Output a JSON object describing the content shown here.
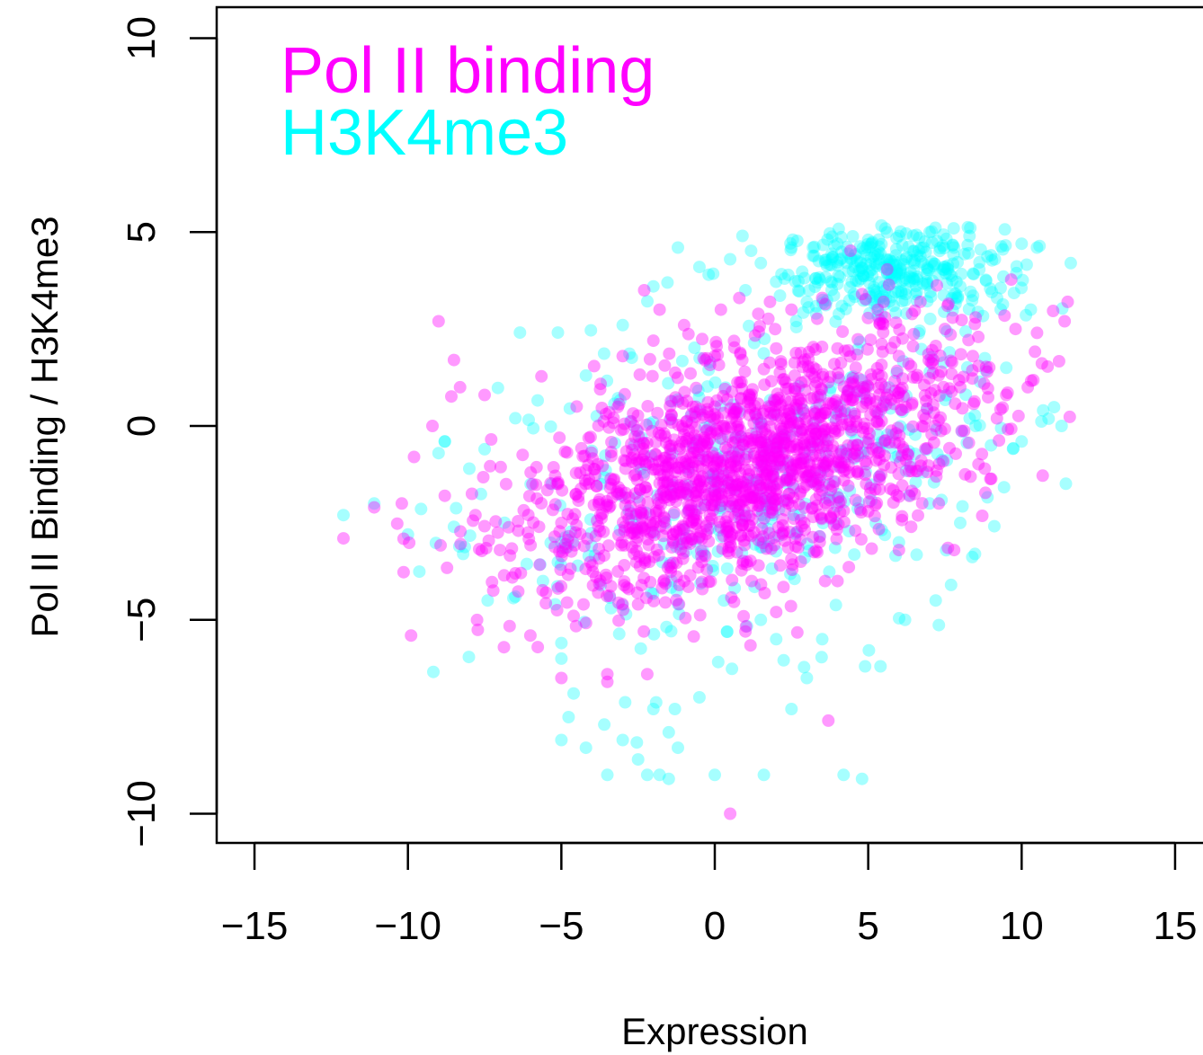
{
  "chart_data": {
    "type": "scatter",
    "title": "",
    "xlabel": "Expression",
    "ylabel": "Pol II Binding / H3K4me3",
    "xlim": [
      -16.2,
      15.5
    ],
    "ylim": [
      -10.8,
      10.8
    ],
    "x_ticks": [
      -15,
      -10,
      -5,
      0,
      5,
      10,
      15
    ],
    "y_ticks": [
      -10,
      -5,
      0,
      5,
      10
    ],
    "x_tick_labels": [
      "−15",
      "−10",
      "−5",
      "0",
      "5",
      "10",
      "15"
    ],
    "y_tick_labels": [
      "−10",
      "−5",
      "0",
      "5",
      "10"
    ],
    "grid": false,
    "legend_position": "top-left",
    "series": [
      {
        "name": "H3K4me3",
        "color": "#00ffff",
        "point_alpha": 0.35,
        "points": [
          [
            -12.1,
            -2.3
          ],
          [
            -11.1,
            -2.0
          ],
          [
            -10.0,
            -2.8
          ],
          [
            -9.0,
            -0.7
          ],
          [
            -8.8,
            -0.4
          ],
          [
            -8.5,
            -2.6
          ],
          [
            -8.2,
            -3.3
          ],
          [
            -8.0,
            -1.1
          ],
          [
            -7.4,
            -4.5
          ],
          [
            -6.5,
            -4.4
          ],
          [
            -5.6,
            -4.0
          ],
          [
            -5.2,
            -4.6
          ],
          [
            -5.0,
            -5.6
          ],
          [
            -5.0,
            -6.0
          ],
          [
            -4.6,
            -6.9
          ],
          [
            -5.0,
            -8.1
          ],
          [
            -4.2,
            -8.3
          ],
          [
            -3.6,
            -7.7
          ],
          [
            -3.5,
            -9.0
          ],
          [
            -3.0,
            -8.1
          ],
          [
            -2.5,
            -8.6
          ],
          [
            -2.2,
            -9.0
          ],
          [
            -1.8,
            -9.0
          ],
          [
            -1.5,
            -9.1
          ],
          [
            -1.5,
            -7.9
          ],
          [
            -1.2,
            -8.3
          ],
          [
            -1.3,
            -7.3
          ],
          [
            -2.0,
            -7.3
          ],
          [
            -0.5,
            -7.0
          ],
          [
            0.0,
            -9.0
          ],
          [
            1.6,
            -9.0
          ],
          [
            2.5,
            -7.3
          ],
          [
            4.2,
            -9.0
          ],
          [
            4.8,
            -9.1
          ],
          [
            3.0,
            -6.5
          ],
          [
            4.9,
            -6.2
          ],
          [
            5.4,
            -6.2
          ],
          [
            6.2,
            -5.0
          ],
          [
            7.2,
            -4.5
          ],
          [
            7.7,
            -4.1
          ],
          [
            8.0,
            -2.5
          ],
          [
            9.0,
            -0.5
          ],
          [
            10.0,
            -0.4
          ],
          [
            10.7,
            0.4
          ],
          [
            11.3,
            0.0
          ],
          [
            11.6,
            4.2
          ],
          [
            10.5,
            4.6
          ],
          [
            10.0,
            4.7
          ],
          [
            9.0,
            4.4
          ],
          [
            8.3,
            4.9
          ],
          [
            7.0,
            5.0
          ],
          [
            6.0,
            4.9
          ],
          [
            5.0,
            4.8
          ],
          [
            4.0,
            4.7
          ],
          [
            3.2,
            4.6
          ],
          [
            2.5,
            4.6
          ],
          [
            1.5,
            4.2
          ],
          [
            0.5,
            4.3
          ],
          [
            -0.5,
            4.1
          ],
          [
            -1.2,
            4.6
          ],
          [
            -0.2,
            3.9
          ],
          [
            1.0,
            3.5
          ],
          [
            -2.0,
            3.6
          ],
          [
            -3.0,
            2.6
          ],
          [
            -4.2,
            1.3
          ],
          [
            -6.5,
            0.2
          ],
          [
            -7.5,
            -0.6
          ],
          [
            -8.8,
            -0.4
          ],
          [
            -6.0,
            -1.5
          ],
          [
            -5.0,
            -3.0
          ],
          [
            0.3,
            -4.5
          ],
          [
            1.5,
            -5.0
          ],
          [
            2.0,
            -5.5
          ],
          [
            3.5,
            -5.5
          ],
          [
            6.0,
            -3.0
          ],
          [
            7.0,
            -2.0
          ],
          [
            8.5,
            0.0
          ],
          [
            9.5,
            1.5
          ],
          [
            9.2,
            3.3
          ],
          [
            10.3,
            3.0
          ],
          [
            3.0,
            3.2
          ],
          [
            5.2,
            3.5
          ],
          [
            6.5,
            4.2
          ],
          [
            7.5,
            4.1
          ],
          [
            4.5,
            4.0
          ],
          [
            3.8,
            4.3
          ],
          [
            6.8,
            4.6
          ],
          [
            7.8,
            4.6
          ],
          [
            5.6,
            4.3
          ],
          [
            8.0,
            3.6
          ]
        ]
      },
      {
        "name": "Pol II binding",
        "color": "#ff00ff",
        "point_alpha": 0.4,
        "points": [
          [
            -12.1,
            -2.9
          ],
          [
            -11.1,
            -2.1
          ],
          [
            -9.8,
            -0.8
          ],
          [
            -9.2,
            0.0
          ],
          [
            -9.0,
            2.7
          ],
          [
            -8.5,
            1.7
          ],
          [
            -8.3,
            1.0
          ],
          [
            -7.5,
            0.8
          ],
          [
            -6.8,
            -1.5
          ],
          [
            -7.0,
            -3.2
          ],
          [
            -5.5,
            -4.3
          ],
          [
            -4.6,
            -4.9
          ],
          [
            -3.5,
            -6.4
          ],
          [
            -3.5,
            -6.6
          ],
          [
            -2.2,
            -6.4
          ],
          [
            -5.0,
            -6.5
          ],
          [
            -3.0,
            1.8
          ],
          [
            -2.3,
            3.5
          ],
          [
            -1.8,
            3.0
          ],
          [
            -1.0,
            2.6
          ],
          [
            0.2,
            3.0
          ],
          [
            0.8,
            3.3
          ],
          [
            1.8,
            3.2
          ],
          [
            2.5,
            3.0
          ],
          [
            3.5,
            3.3
          ],
          [
            4.8,
            3.4
          ],
          [
            5.5,
            3.2
          ],
          [
            6.7,
            3.2
          ],
          [
            7.5,
            2.5
          ],
          [
            8.5,
            2.8
          ],
          [
            9.8,
            2.5
          ],
          [
            11.4,
            2.7
          ],
          [
            11.5,
            3.2
          ],
          [
            10.5,
            2.4
          ],
          [
            10.2,
            1.0
          ],
          [
            8.8,
            -1.1
          ],
          [
            7.3,
            -2.0
          ],
          [
            6.4,
            -2.6
          ],
          [
            6.0,
            -3.2
          ],
          [
            4.0,
            -4.0
          ],
          [
            2.0,
            -4.8
          ],
          [
            1.2,
            -4.0
          ],
          [
            0.5,
            -10.0
          ],
          [
            3.7,
            -7.6
          ],
          [
            1.0,
            -5.3
          ],
          [
            -4.5,
            0.5
          ],
          [
            -5.0,
            -2.5
          ],
          [
            -6.0,
            -1.2
          ],
          [
            -2.0,
            2.2
          ],
          [
            0.0,
            1.8
          ],
          [
            2.0,
            2.0
          ],
          [
            4.0,
            2.0
          ],
          [
            6.0,
            1.8
          ],
          [
            8.0,
            1.0
          ],
          [
            9.5,
            0.8
          ],
          [
            -3.8,
            -4.3
          ],
          [
            -2.5,
            -4.6
          ],
          [
            -1.0,
            -4.0
          ],
          [
            2.8,
            -3.5
          ],
          [
            5.0,
            -2.2
          ],
          [
            -6.5,
            -3.8
          ],
          [
            -7.8,
            -2.3
          ],
          [
            -8.8,
            -1.8
          ],
          [
            -10.2,
            -2.0
          ],
          [
            7.8,
            -3.2
          ]
        ]
      }
    ],
    "dense_clouds": [
      {
        "series": "H3K4me3",
        "count": 320,
        "cx": 5.8,
        "cy": 4.0,
        "sx": 1.8,
        "sy": 0.55,
        "rot": 0
      },
      {
        "series": "H3K4me3",
        "count": 420,
        "cx": 1.5,
        "cy": -1.4,
        "sx": 4.6,
        "sy": 1.9,
        "rot": 0.22
      },
      {
        "series": "Pol II binding",
        "count": 1600,
        "cx": 1.2,
        "cy": -1.0,
        "sx": 3.8,
        "sy": 1.35,
        "rot": 0.27
      }
    ]
  }
}
